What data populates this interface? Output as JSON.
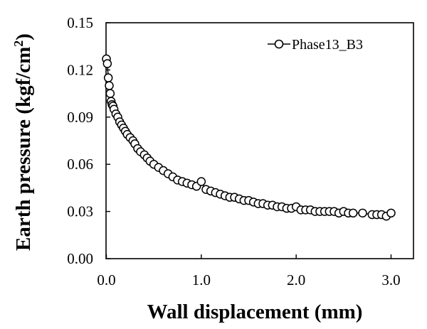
{
  "chart_data": {
    "type": "scatter",
    "xlabel": "Wall displacement (mm)",
    "ylabel_main": "Earth pressure (kgf/cm",
    "ylabel_sup": "2",
    "ylabel_close": ")",
    "xlim": [
      0.0,
      3.0
    ],
    "ylim": [
      0.0,
      0.15
    ],
    "xticks": [
      "0.0",
      "1.0",
      "2.0",
      "3.0"
    ],
    "yticks": [
      "0.00",
      "0.03",
      "0.06",
      "0.09",
      "0.12",
      "0.15"
    ],
    "xtick_values": [
      0.0,
      1.0,
      2.0,
      3.0
    ],
    "ytick_values": [
      0.0,
      0.03,
      0.06,
      0.09,
      0.12,
      0.15
    ],
    "grid": false,
    "legend_position": "top-right",
    "series": [
      {
        "name": "Phase13_B3",
        "marker": "open-circle",
        "x": [
          0.0,
          0.01,
          0.02,
          0.03,
          0.04,
          0.05,
          0.06,
          0.07,
          0.08,
          0.1,
          0.12,
          0.14,
          0.16,
          0.18,
          0.2,
          0.22,
          0.25,
          0.28,
          0.3,
          0.33,
          0.36,
          0.4,
          0.43,
          0.46,
          0.5,
          0.55,
          0.6,
          0.65,
          0.7,
          0.75,
          0.8,
          0.85,
          0.9,
          0.95,
          1.0,
          1.05,
          1.1,
          1.15,
          1.2,
          1.25,
          1.3,
          1.35,
          1.4,
          1.45,
          1.5,
          1.55,
          1.6,
          1.65,
          1.7,
          1.75,
          1.8,
          1.85,
          1.9,
          1.95,
          2.0,
          2.05,
          2.1,
          2.15,
          2.2,
          2.25,
          2.3,
          2.35,
          2.4,
          2.45,
          2.5,
          2.55,
          2.6,
          2.7,
          2.8,
          2.85,
          2.9,
          2.95,
          3.0
        ],
        "y": [
          0.127,
          0.124,
          0.115,
          0.11,
          0.105,
          0.1,
          0.098,
          0.097,
          0.095,
          0.092,
          0.09,
          0.087,
          0.085,
          0.083,
          0.081,
          0.079,
          0.077,
          0.075,
          0.073,
          0.07,
          0.068,
          0.066,
          0.064,
          0.062,
          0.06,
          0.058,
          0.056,
          0.054,
          0.052,
          0.05,
          0.049,
          0.048,
          0.047,
          0.046,
          0.049,
          0.044,
          0.043,
          0.042,
          0.041,
          0.04,
          0.039,
          0.039,
          0.038,
          0.037,
          0.037,
          0.036,
          0.035,
          0.035,
          0.034,
          0.034,
          0.033,
          0.033,
          0.032,
          0.032,
          0.033,
          0.031,
          0.031,
          0.031,
          0.03,
          0.03,
          0.03,
          0.03,
          0.03,
          0.029,
          0.03,
          0.029,
          0.029,
          0.029,
          0.028,
          0.028,
          0.028,
          0.027,
          0.029
        ]
      }
    ]
  }
}
